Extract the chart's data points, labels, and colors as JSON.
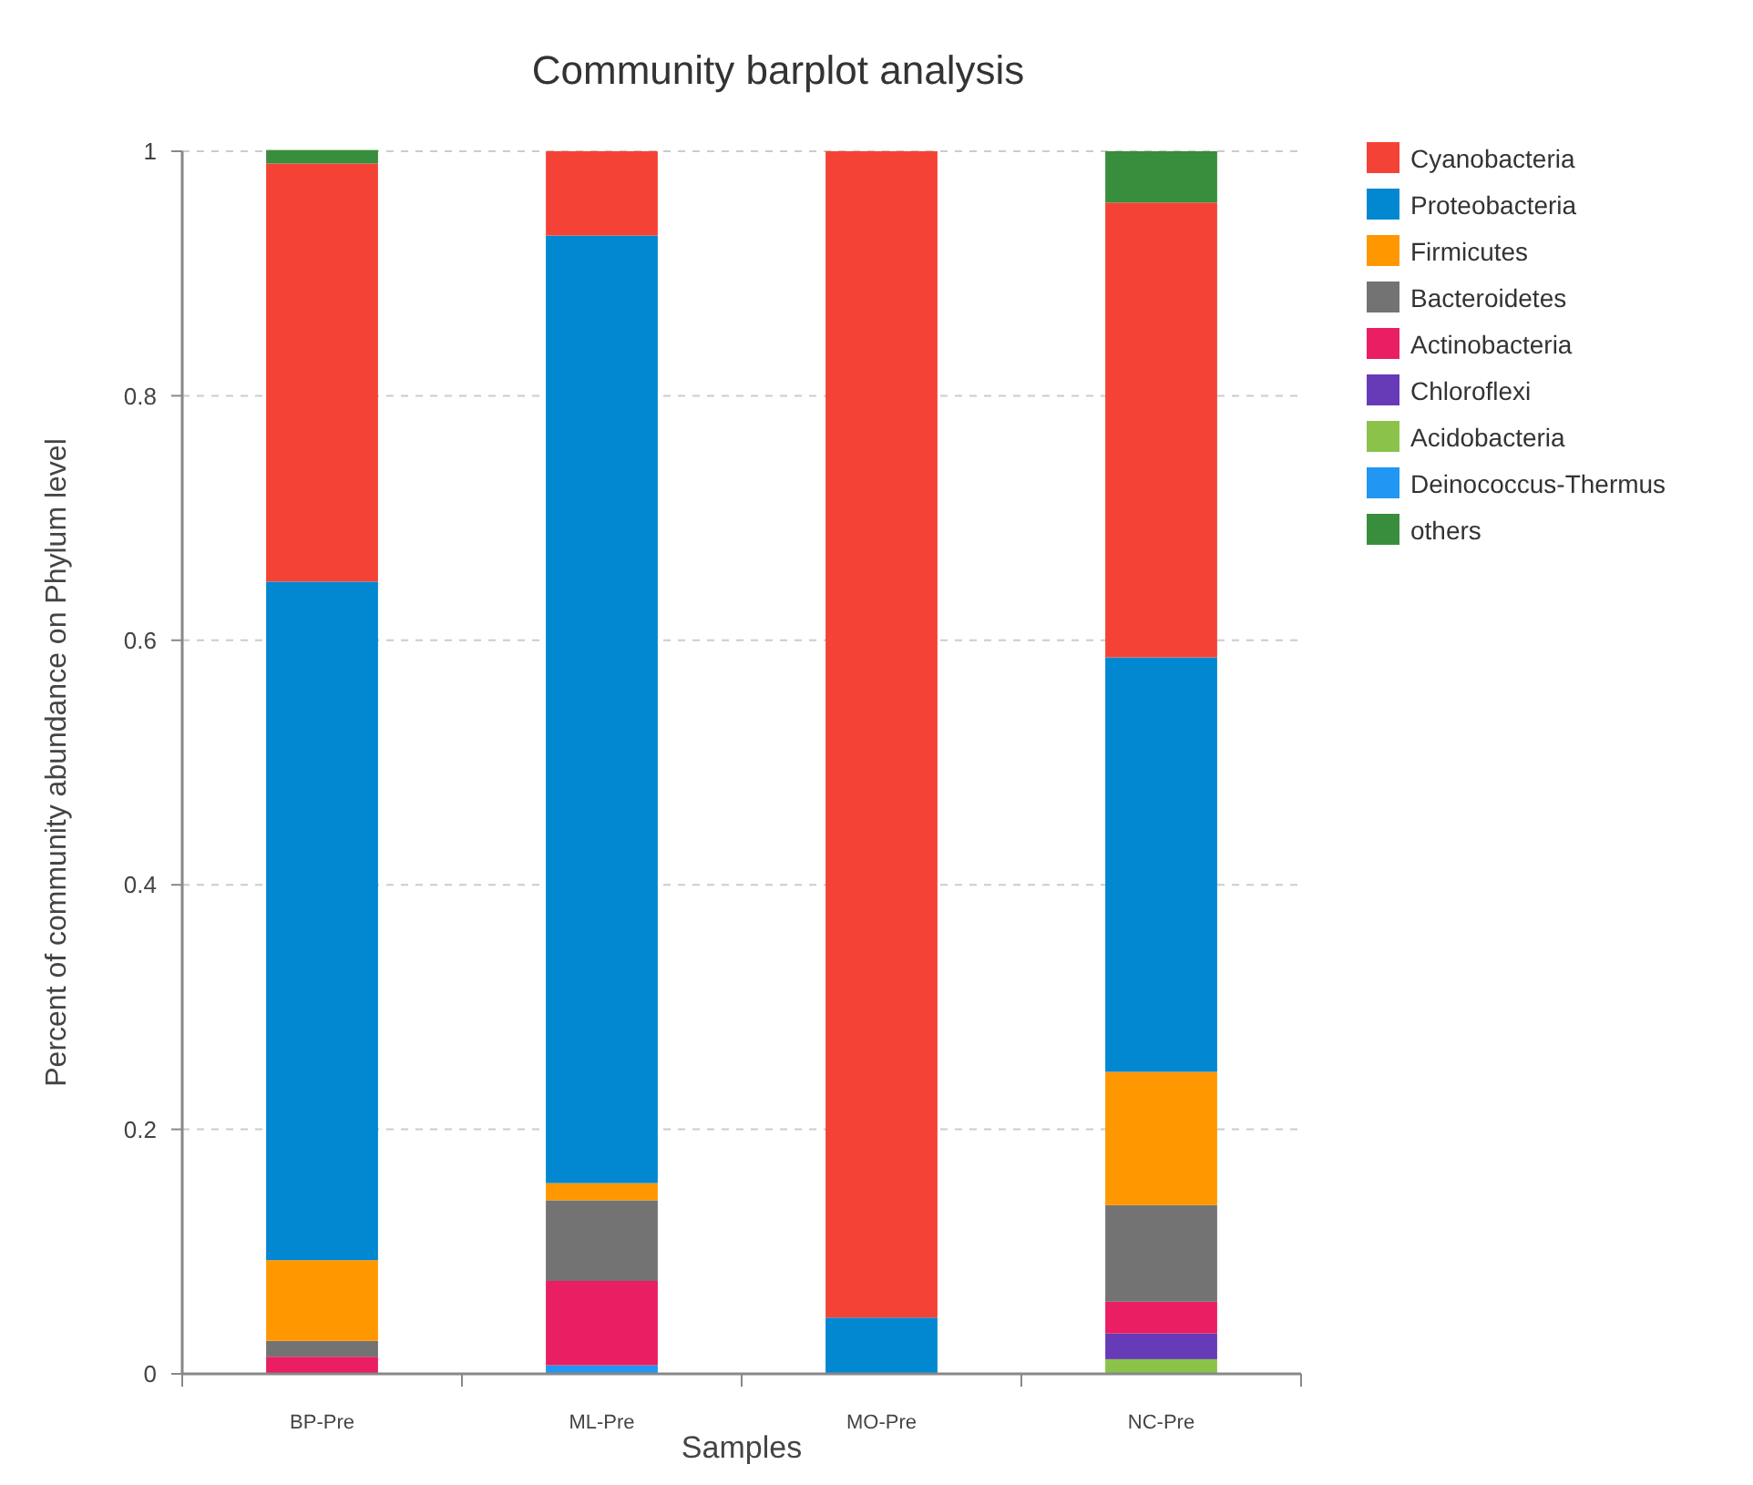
{
  "chart_data": {
    "type": "bar",
    "title": "Community barplot analysis",
    "xlabel": "Samples",
    "ylabel": "Percent of community abundance on Phylum level",
    "categories": [
      "BP-Pre",
      "ML-Pre",
      "MO-Pre",
      "NC-Pre"
    ],
    "stacked": true,
    "ylim": [
      0,
      1
    ],
    "yticks": [
      0,
      0.2,
      0.4,
      0.6,
      0.8,
      1
    ],
    "grid": "y",
    "legend": "top right",
    "series": [
      {
        "name": "Deinococcus-Thermus",
        "color": "#2196f3",
        "values": [
          0,
          0.007,
          0,
          0
        ]
      },
      {
        "name": "Acidobacteria",
        "color": "#8bc34a",
        "values": [
          0,
          0,
          0,
          0.012
        ]
      },
      {
        "name": "Chloroflexi",
        "color": "#673ab7",
        "values": [
          0,
          0,
          0,
          0.021
        ]
      },
      {
        "name": "Actinobacteria",
        "color": "#e91e63",
        "values": [
          0.014,
          0.069,
          0,
          0.026
        ]
      },
      {
        "name": "Bacteroidetes",
        "color": "#737373",
        "values": [
          0.013,
          0.066,
          0,
          0.079
        ]
      },
      {
        "name": "Firmicutes",
        "color": "#ff9800",
        "values": [
          0.066,
          0.014,
          0,
          0.109
        ]
      },
      {
        "name": "Proteobacteria",
        "color": "#0288d1",
        "values": [
          0.555,
          0.775,
          0.046,
          0.339
        ]
      },
      {
        "name": "Cyanobacteria",
        "color": "#f44336",
        "values": [
          0.342,
          0.069,
          0.954,
          0.372
        ]
      },
      {
        "name": "others",
        "color": "#388e3c",
        "values": [
          0.011,
          0,
          0,
          0.042
        ]
      }
    ]
  }
}
